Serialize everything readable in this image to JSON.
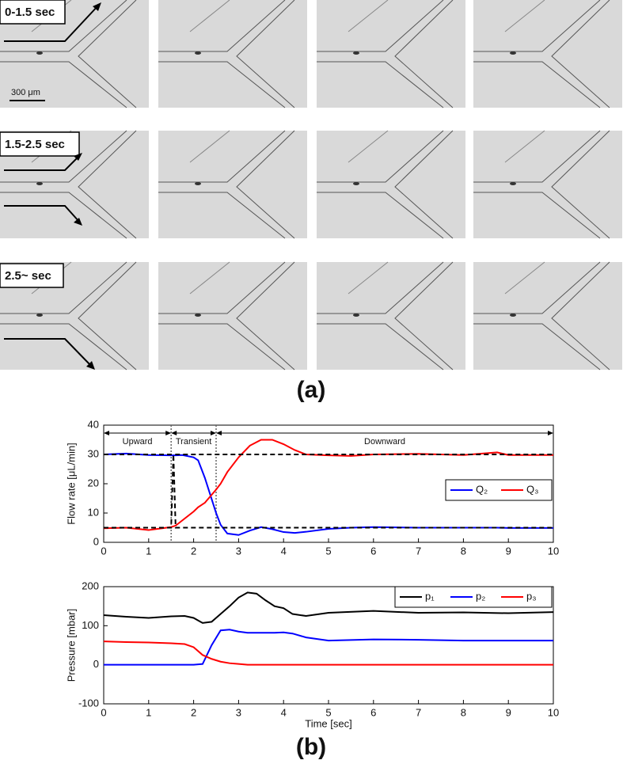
{
  "figure": {
    "row_labels": [
      "0-1.5 sec",
      "1.5-2.5 sec",
      "2.5~ sec"
    ],
    "scale_bar": "300 μm",
    "panel_a": "(a)",
    "panel_b": "(b)"
  },
  "chart_data": [
    {
      "type": "line",
      "ylabel": "Flow rate [μL/min]",
      "xlim": [
        0,
        10
      ],
      "ylim": [
        0,
        40
      ],
      "xticks": [
        0,
        1,
        2,
        3,
        4,
        5,
        6,
        7,
        8,
        9,
        10
      ],
      "yticks": [
        0,
        10,
        20,
        30,
        40
      ],
      "legend": "right",
      "regions": [
        {
          "label": "Upward",
          "start": 0,
          "end": 1.5
        },
        {
          "label": "Transient",
          "start": 1.5,
          "end": 2.5
        },
        {
          "label": "Downward",
          "start": 2.5,
          "end": 10
        }
      ],
      "vlines": [
        1.5,
        2.5
      ],
      "series": [
        {
          "name": "Q₂",
          "color": "#0000ff",
          "x": [
            0,
            0.5,
            1,
            1.5,
            1.6,
            1.75,
            2,
            2.1,
            2.25,
            2.5,
            2.6,
            2.75,
            3,
            3.25,
            3.5,
            3.75,
            4,
            4.25,
            4.5,
            5,
            5.5,
            6,
            7,
            8,
            8.75,
            9,
            10
          ],
          "values": [
            30,
            30.3,
            29.8,
            29.7,
            29.7,
            29.8,
            29,
            28,
            22,
            10,
            6,
            3,
            2.5,
            4,
            5.2,
            4.5,
            3.5,
            3.2,
            3.6,
            4.6,
            5,
            5.2,
            5,
            5,
            5,
            4.9,
            4.9
          ]
        },
        {
          "name": "Q₃",
          "color": "#ff0000",
          "x": [
            0,
            0.5,
            1,
            1.5,
            1.6,
            1.75,
            2,
            2.1,
            2.25,
            2.5,
            2.6,
            2.75,
            3,
            3.25,
            3.5,
            3.75,
            4,
            4.25,
            4.5,
            5,
            5.5,
            6,
            7,
            8,
            8.75,
            9,
            10
          ],
          "values": [
            4.8,
            5,
            4.2,
            5.2,
            5.7,
            7.5,
            10.5,
            12,
            13.5,
            18,
            20,
            24,
            29,
            33,
            35,
            35,
            33.5,
            31.5,
            30,
            29.7,
            29.5,
            30,
            30.2,
            29.8,
            30.7,
            29.8,
            29.8
          ]
        },
        {
          "color": "#000000",
          "dash": true,
          "x": [
            0,
            1.55,
            1.6,
            10
          ],
          "values": [
            30,
            30,
            5,
            5
          ]
        },
        {
          "color": "#000000",
          "dash": true,
          "x": [
            0,
            1.5,
            1.55,
            10
          ],
          "values": [
            5,
            5,
            30,
            30
          ]
        }
      ]
    },
    {
      "type": "line",
      "ylabel": "Pressure [mbar]",
      "xlabel": "Time [sec]",
      "xlim": [
        0,
        10
      ],
      "ylim": [
        -100,
        200
      ],
      "xticks": [
        0,
        1,
        2,
        3,
        4,
        5,
        6,
        7,
        8,
        9,
        10
      ],
      "yticks": [
        -100,
        0,
        100,
        200
      ],
      "legend": "upper right",
      "series": [
        {
          "name": "p₁",
          "color": "#000000",
          "x": [
            0,
            0.5,
            1,
            1.5,
            1.8,
            2,
            2.2,
            2.4,
            2.6,
            2.8,
            3,
            3.2,
            3.4,
            3.6,
            3.8,
            4,
            4.2,
            4.5,
            5,
            6,
            7,
            8,
            9,
            10
          ],
          "values": [
            127,
            123,
            120,
            124,
            125,
            120,
            107,
            110,
            130,
            150,
            172,
            185,
            182,
            165,
            150,
            145,
            130,
            125,
            133,
            138,
            133,
            134,
            132,
            135
          ]
        },
        {
          "name": "p₂",
          "color": "#0000ff",
          "x": [
            0,
            0.5,
            1,
            1.5,
            1.8,
            2,
            2.2,
            2.4,
            2.6,
            2.8,
            3,
            3.2,
            3.4,
            3.6,
            3.8,
            4,
            4.2,
            4.5,
            5,
            6,
            7,
            8,
            9,
            10
          ],
          "values": [
            0,
            0,
            0,
            0,
            0,
            0,
            2,
            50,
            88,
            90,
            85,
            82,
            82,
            82,
            82,
            83,
            80,
            70,
            62,
            65,
            64,
            62,
            62,
            62
          ]
        },
        {
          "name": "p₃",
          "color": "#ff0000",
          "x": [
            0,
            0.5,
            1,
            1.5,
            1.8,
            2,
            2.2,
            2.4,
            2.6,
            2.8,
            3,
            3.2,
            3.4,
            3.6,
            3.8,
            4,
            4.2,
            4.5,
            5,
            6,
            7,
            8,
            9,
            10
          ],
          "values": [
            60,
            58,
            57,
            55,
            53,
            45,
            25,
            15,
            8,
            4,
            2,
            0,
            0,
            0,
            0,
            0,
            0,
            0,
            0,
            0,
            0,
            0,
            0,
            0
          ]
        }
      ]
    }
  ]
}
